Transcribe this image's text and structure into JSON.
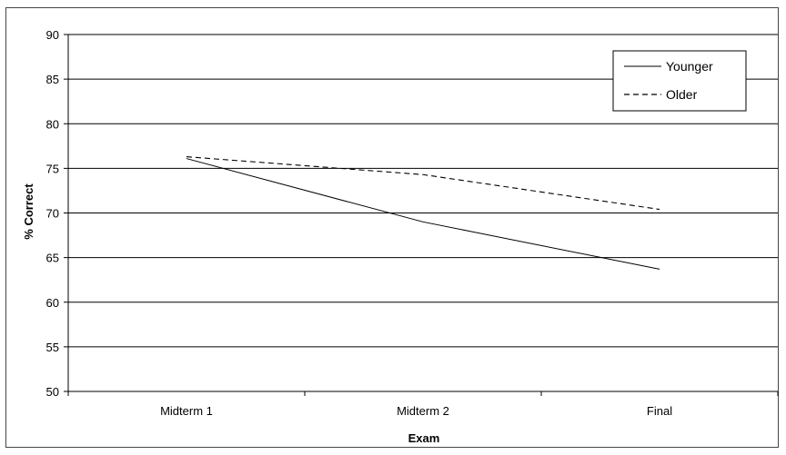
{
  "chart_data": {
    "type": "line",
    "title": "",
    "xlabel": "Exam",
    "ylabel": "% Correct",
    "categories": [
      "Midterm 1",
      "Midterm 2",
      "Final"
    ],
    "ylim": [
      50,
      90
    ],
    "yticks": [
      "50",
      "55",
      "60",
      "65",
      "70",
      "75",
      "80",
      "85",
      "90"
    ],
    "grid": true,
    "legend_position": "top-right",
    "series": [
      {
        "name": "Younger",
        "values": [
          76.1,
          69.0,
          63.7
        ],
        "line_style": "solid",
        "color": "#000000"
      },
      {
        "name": "Older",
        "values": [
          76.3,
          74.3,
          70.4
        ],
        "line_style": "dashed",
        "color": "#000000"
      }
    ]
  }
}
